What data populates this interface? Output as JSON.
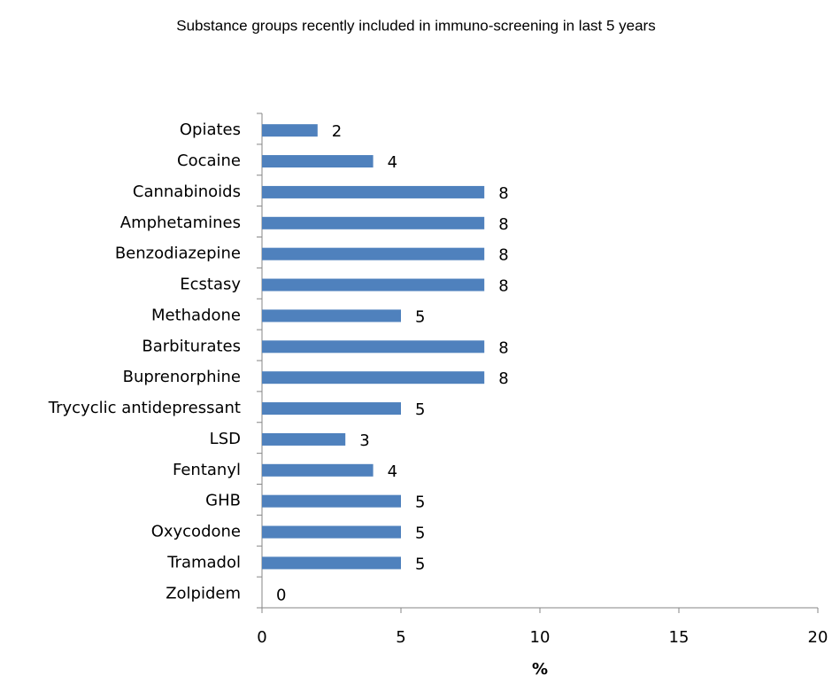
{
  "chart_data": {
    "type": "barh",
    "title": "Substance groups recently included in immuno-screening in last 5 years",
    "x_label": "%",
    "categories": [
      "Opiates",
      "Cocaine",
      "Cannabinoids",
      "Amphetamines",
      "Benzodiazepine",
      "Ecstasy",
      "Methadone",
      "Barbiturates",
      "Buprenorphine",
      "Trycyclic antidepressant",
      "LSD",
      "Fentanyl",
      "GHB",
      "Oxycodone",
      "Tramadol",
      "Zolpidem"
    ],
    "values": [
      2,
      4,
      8,
      8,
      8,
      8,
      5,
      8,
      8,
      5,
      3,
      4,
      5,
      5,
      5,
      0
    ],
    "color": "#4f81bd",
    "xlim": [
      0,
      20
    ],
    "xticks": [
      0,
      5,
      10,
      15,
      20
    ],
    "grid": false
  }
}
